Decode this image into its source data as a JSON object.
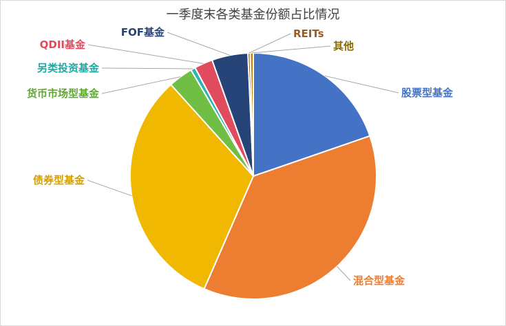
{
  "chart_data": {
    "type": "pie",
    "title": "一季度末各类基金份额占比情况",
    "slices": [
      {
        "label": "股票型基金",
        "value": 19.6,
        "color": "#4472C4"
      },
      {
        "label": "混合型基金",
        "value": 36.6,
        "color": "#ED7D31"
      },
      {
        "label": "债券型基金",
        "value": 31.6,
        "color": "#F0B800"
      },
      {
        "label": "货币市场型基金",
        "value": 3.2,
        "color": "#70BF44"
      },
      {
        "label": "另类投资基金",
        "value": 0.6,
        "color": "#2CB5B0"
      },
      {
        "label": "QDII基金",
        "value": 2.4,
        "color": "#E04C5E"
      },
      {
        "label": "FOF基金",
        "value": 4.7,
        "color": "#264478"
      },
      {
        "label": "REITs",
        "value": 0.3,
        "color": "#9E5A1C"
      },
      {
        "label": "其他",
        "value": 0.4,
        "color": "#B8860B"
      }
    ]
  },
  "label_colors": [
    "#4472C4",
    "#ED7D31",
    "#D4A000",
    "#5FA832",
    "#20A8A2",
    "#E04C5E",
    "#264478",
    "#9E5A1C",
    "#8A6A00"
  ]
}
